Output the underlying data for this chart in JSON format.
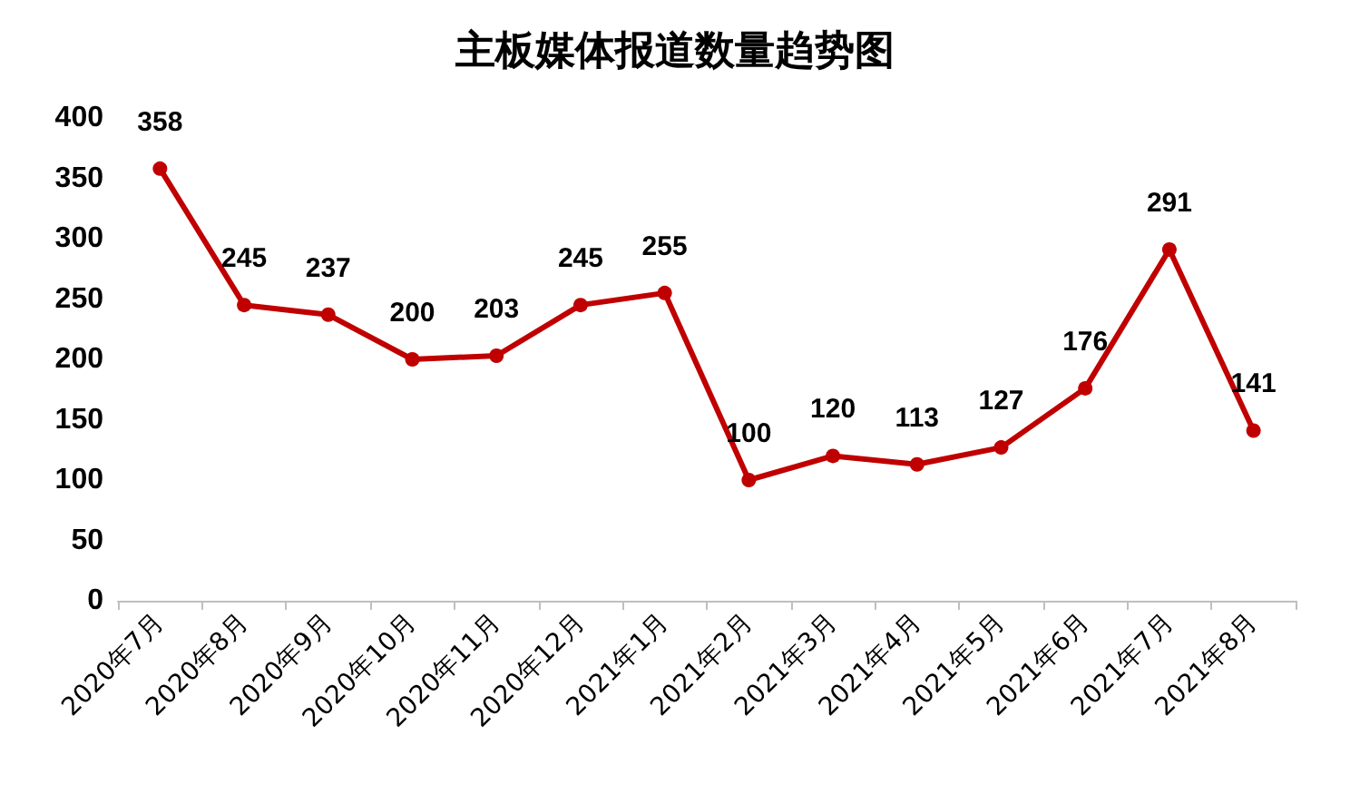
{
  "chart_data": {
    "type": "line",
    "title": "主板媒体报道数量趋势图",
    "categories": [
      "2020年7月",
      "2020年8月",
      "2020年9月",
      "2020年10月",
      "2020年11月",
      "2020年12月",
      "2021年1月",
      "2021年2月",
      "2021年3月",
      "2021年4月",
      "2021年5月",
      "2021年6月",
      "2021年7月",
      "2021年8月"
    ],
    "values": [
      358,
      245,
      237,
      200,
      203,
      245,
      255,
      100,
      120,
      113,
      127,
      176,
      291,
      141
    ],
    "color": "#c00000",
    "ylim": [
      0,
      400
    ],
    "yticks": [
      0,
      50,
      100,
      150,
      200,
      250,
      300,
      350,
      400
    ],
    "grid": false,
    "marker": "circle",
    "line_style": "solid",
    "data_labels": true
  }
}
